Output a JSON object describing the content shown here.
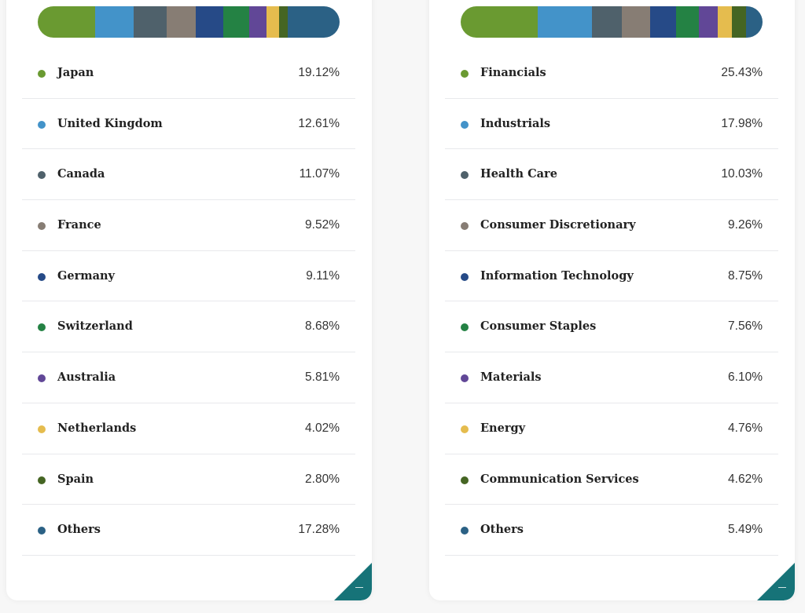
{
  "countries": {
    "items": [
      {
        "label": "Japan",
        "value": "19.12%",
        "pct": 19.12,
        "color": "#6a9a31"
      },
      {
        "label": "United Kingdom",
        "value": "12.61%",
        "pct": 12.61,
        "color": "#4393c9"
      },
      {
        "label": "Canada",
        "value": "11.07%",
        "pct": 11.07,
        "color": "#4f616b"
      },
      {
        "label": "France",
        "value": "9.52%",
        "pct": 9.52,
        "color": "#877d74"
      },
      {
        "label": "Germany",
        "value": "9.11%",
        "pct": 9.11,
        "color": "#264a87"
      },
      {
        "label": "Switzerland",
        "value": "8.68%",
        "pct": 8.68,
        "color": "#248244"
      },
      {
        "label": "Australia",
        "value": "5.81%",
        "pct": 5.81,
        "color": "#614797"
      },
      {
        "label": "Netherlands",
        "value": "4.02%",
        "pct": 4.02,
        "color": "#e5bc4e"
      },
      {
        "label": "Spain",
        "value": "2.80%",
        "pct": 2.8,
        "color": "#456523"
      },
      {
        "label": "Others",
        "value": "17.28%",
        "pct": 17.28,
        "color": "#2b6185"
      }
    ]
  },
  "sectors": {
    "items": [
      {
        "label": "Financials",
        "value": "25.43%",
        "pct": 25.43,
        "color": "#6a9a31"
      },
      {
        "label": "Industrials",
        "value": "17.98%",
        "pct": 17.98,
        "color": "#4393c9"
      },
      {
        "label": "Health Care",
        "value": "10.03%",
        "pct": 10.03,
        "color": "#4f616b"
      },
      {
        "label": "Consumer Discretionary",
        "value": "9.26%",
        "pct": 9.26,
        "color": "#877d74"
      },
      {
        "label": "Information Technology",
        "value": "8.75%",
        "pct": 8.75,
        "color": "#264a87"
      },
      {
        "label": "Consumer Staples",
        "value": "7.56%",
        "pct": 7.56,
        "color": "#248244"
      },
      {
        "label": "Materials",
        "value": "6.10%",
        "pct": 6.1,
        "color": "#614797"
      },
      {
        "label": "Energy",
        "value": "4.76%",
        "pct": 4.76,
        "color": "#e5bc4e"
      },
      {
        "label": "Communication Services",
        "value": "4.62%",
        "pct": 4.62,
        "color": "#456523"
      },
      {
        "label": "Others",
        "value": "5.49%",
        "pct": 5.49,
        "color": "#2b6185"
      }
    ]
  },
  "accent_color": "#167378"
}
